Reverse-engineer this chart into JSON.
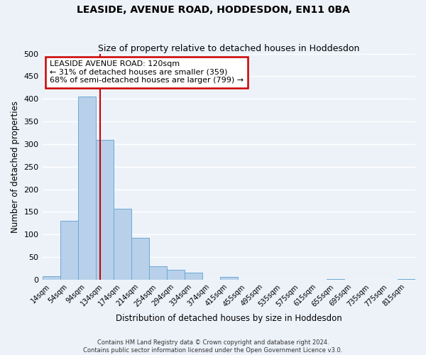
{
  "title": "LEASIDE, AVENUE ROAD, HODDESDON, EN11 0BA",
  "subtitle": "Size of property relative to detached houses in Hoddesdon",
  "xlabel": "Distribution of detached houses by size in Hoddesdon",
  "ylabel": "Number of detached properties",
  "bar_labels": [
    "14sqm",
    "54sqm",
    "94sqm",
    "134sqm",
    "174sqm",
    "214sqm",
    "254sqm",
    "294sqm",
    "334sqm",
    "374sqm",
    "415sqm",
    "455sqm",
    "495sqm",
    "535sqm",
    "575sqm",
    "615sqm",
    "655sqm",
    "695sqm",
    "735sqm",
    "775sqm",
    "815sqm"
  ],
  "bar_values": [
    7,
    130,
    405,
    310,
    157,
    92,
    30,
    22,
    15,
    0,
    6,
    0,
    0,
    0,
    0,
    0,
    2,
    0,
    0,
    0,
    1
  ],
  "bar_color": "#b8d0ea",
  "bar_edgecolor": "#6aaad4",
  "background_color": "#edf2f9",
  "grid_color": "#ffffff",
  "ylim": [
    0,
    500
  ],
  "yticks": [
    0,
    50,
    100,
    150,
    200,
    250,
    300,
    350,
    400,
    450,
    500
  ],
  "vline_color": "#cc0000",
  "annotation_title": "LEASIDE AVENUE ROAD: 120sqm",
  "annotation_line1": "← 31% of detached houses are smaller (359)",
  "annotation_line2": "68% of semi-detached houses are larger (799) →",
  "annotation_box_color": "#cc0000",
  "footer_line1": "Contains HM Land Registry data © Crown copyright and database right 2024.",
  "footer_line2": "Contains public sector information licensed under the Open Government Licence v3.0."
}
